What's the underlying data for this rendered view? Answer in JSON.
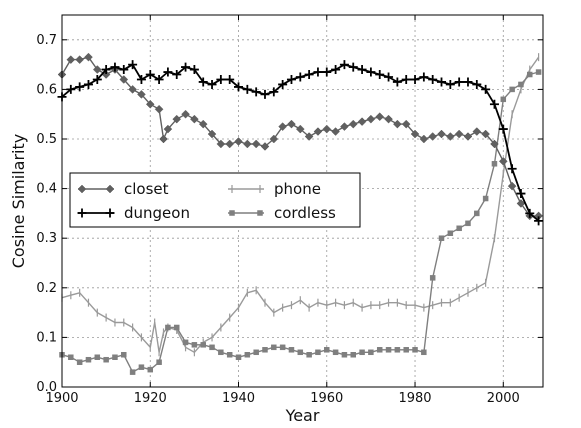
{
  "chart_data": {
    "type": "line",
    "title": "",
    "xlabel": "Year",
    "ylabel": "Cosine Similarity",
    "xlim": [
      1900,
      2009
    ],
    "ylim": [
      0.0,
      0.75
    ],
    "grid": true,
    "legend_position": "center-left",
    "x_ticks": [
      1900,
      1920,
      1940,
      1960,
      1980,
      2000
    ],
    "y_ticks": [
      0.0,
      0.1,
      0.2,
      0.3,
      0.4,
      0.5,
      0.6,
      0.7
    ],
    "x_tick_labels": [
      "1900",
      "1920",
      "1940",
      "1960",
      "1980",
      "2000"
    ],
    "y_tick_labels": [
      "0.0",
      "0.1",
      "0.2",
      "0.3",
      "0.4",
      "0.5",
      "0.6",
      "0.7"
    ],
    "series": [
      {
        "name": "closet",
        "color": "#606060",
        "marker": "diamond",
        "points": [
          [
            1900,
            0.63
          ],
          [
            1902,
            0.66
          ],
          [
            1904,
            0.66
          ],
          [
            1906,
            0.665
          ],
          [
            1908,
            0.64
          ],
          [
            1910,
            0.63
          ],
          [
            1912,
            0.64
          ],
          [
            1914,
            0.62
          ],
          [
            1916,
            0.6
          ],
          [
            1918,
            0.59
          ],
          [
            1920,
            0.57
          ],
          [
            1922,
            0.56
          ],
          [
            1923,
            0.5
          ],
          [
            1924,
            0.52
          ],
          [
            1926,
            0.54
          ],
          [
            1928,
            0.55
          ],
          [
            1930,
            0.54
          ],
          [
            1932,
            0.53
          ],
          [
            1934,
            0.51
          ],
          [
            1936,
            0.49
          ],
          [
            1938,
            0.49
          ],
          [
            1940,
            0.495
          ],
          [
            1942,
            0.49
          ],
          [
            1944,
            0.49
          ],
          [
            1946,
            0.485
          ],
          [
            1948,
            0.5
          ],
          [
            1950,
            0.525
          ],
          [
            1952,
            0.53
          ],
          [
            1954,
            0.52
          ],
          [
            1956,
            0.505
          ],
          [
            1958,
            0.515
          ],
          [
            1960,
            0.52
          ],
          [
            1962,
            0.515
          ],
          [
            1964,
            0.525
          ],
          [
            1966,
            0.53
          ],
          [
            1968,
            0.535
          ],
          [
            1970,
            0.54
          ],
          [
            1972,
            0.545
          ],
          [
            1974,
            0.54
          ],
          [
            1976,
            0.53
          ],
          [
            1978,
            0.53
          ],
          [
            1980,
            0.51
          ],
          [
            1982,
            0.5
          ],
          [
            1984,
            0.505
          ],
          [
            1986,
            0.51
          ],
          [
            1988,
            0.505
          ],
          [
            1990,
            0.51
          ],
          [
            1992,
            0.505
          ],
          [
            1994,
            0.515
          ],
          [
            1996,
            0.51
          ],
          [
            1998,
            0.49
          ],
          [
            2000,
            0.455
          ],
          [
            2002,
            0.405
          ],
          [
            2004,
            0.37
          ],
          [
            2006,
            0.345
          ],
          [
            2008,
            0.345
          ]
        ]
      },
      {
        "name": "dungeon",
        "color": "#000000",
        "marker": "plus",
        "points": [
          [
            1900,
            0.585
          ],
          [
            1902,
            0.6
          ],
          [
            1904,
            0.605
          ],
          [
            1906,
            0.61
          ],
          [
            1908,
            0.62
          ],
          [
            1910,
            0.64
          ],
          [
            1912,
            0.645
          ],
          [
            1914,
            0.64
          ],
          [
            1916,
            0.65
          ],
          [
            1918,
            0.62
          ],
          [
            1920,
            0.63
          ],
          [
            1922,
            0.62
          ],
          [
            1924,
            0.635
          ],
          [
            1926,
            0.63
          ],
          [
            1928,
            0.645
          ],
          [
            1930,
            0.64
          ],
          [
            1932,
            0.615
          ],
          [
            1934,
            0.61
          ],
          [
            1936,
            0.62
          ],
          [
            1938,
            0.62
          ],
          [
            1940,
            0.605
          ],
          [
            1942,
            0.6
          ],
          [
            1944,
            0.595
          ],
          [
            1946,
            0.59
          ],
          [
            1948,
            0.595
          ],
          [
            1950,
            0.61
          ],
          [
            1952,
            0.62
          ],
          [
            1954,
            0.625
          ],
          [
            1956,
            0.63
          ],
          [
            1958,
            0.635
          ],
          [
            1960,
            0.635
          ],
          [
            1962,
            0.64
          ],
          [
            1964,
            0.65
          ],
          [
            1966,
            0.645
          ],
          [
            1968,
            0.64
          ],
          [
            1970,
            0.635
          ],
          [
            1972,
            0.63
          ],
          [
            1974,
            0.625
          ],
          [
            1976,
            0.615
          ],
          [
            1978,
            0.62
          ],
          [
            1980,
            0.62
          ],
          [
            1982,
            0.625
          ],
          [
            1984,
            0.62
          ],
          [
            1986,
            0.615
          ],
          [
            1988,
            0.61
          ],
          [
            1990,
            0.615
          ],
          [
            1992,
            0.615
          ],
          [
            1994,
            0.61
          ],
          [
            1996,
            0.6
          ],
          [
            1998,
            0.57
          ],
          [
            2000,
            0.52
          ],
          [
            2002,
            0.44
          ],
          [
            2004,
            0.39
          ],
          [
            2006,
            0.35
          ],
          [
            2008,
            0.335
          ]
        ]
      },
      {
        "name": "phone",
        "color": "#9a9a9a",
        "marker": "vbar",
        "points": [
          [
            1900,
            0.18
          ],
          [
            1902,
            0.185
          ],
          [
            1904,
            0.19
          ],
          [
            1906,
            0.17
          ],
          [
            1908,
            0.15
          ],
          [
            1910,
            0.14
          ],
          [
            1912,
            0.13
          ],
          [
            1914,
            0.13
          ],
          [
            1916,
            0.12
          ],
          [
            1918,
            0.1
          ],
          [
            1920,
            0.08
          ],
          [
            1921,
            0.13
          ],
          [
            1922,
            0.07
          ],
          [
            1923,
            0.11
          ],
          [
            1924,
            0.12
          ],
          [
            1926,
            0.115
          ],
          [
            1928,
            0.08
          ],
          [
            1930,
            0.07
          ],
          [
            1932,
            0.09
          ],
          [
            1934,
            0.1
          ],
          [
            1936,
            0.12
          ],
          [
            1938,
            0.14
          ],
          [
            1940,
            0.16
          ],
          [
            1942,
            0.19
          ],
          [
            1944,
            0.195
          ],
          [
            1946,
            0.17
          ],
          [
            1948,
            0.15
          ],
          [
            1950,
            0.16
          ],
          [
            1952,
            0.165
          ],
          [
            1954,
            0.175
          ],
          [
            1956,
            0.16
          ],
          [
            1958,
            0.17
          ],
          [
            1960,
            0.165
          ],
          [
            1962,
            0.17
          ],
          [
            1964,
            0.165
          ],
          [
            1966,
            0.17
          ],
          [
            1968,
            0.16
          ],
          [
            1970,
            0.165
          ],
          [
            1972,
            0.165
          ],
          [
            1974,
            0.17
          ],
          [
            1976,
            0.17
          ],
          [
            1978,
            0.165
          ],
          [
            1980,
            0.165
          ],
          [
            1982,
            0.16
          ],
          [
            1984,
            0.165
          ],
          [
            1986,
            0.17
          ],
          [
            1988,
            0.17
          ],
          [
            1990,
            0.18
          ],
          [
            1992,
            0.19
          ],
          [
            1994,
            0.2
          ],
          [
            1996,
            0.21
          ],
          [
            1998,
            0.3
          ],
          [
            2000,
            0.43
          ],
          [
            2002,
            0.55
          ],
          [
            2004,
            0.6
          ],
          [
            2006,
            0.64
          ],
          [
            2008,
            0.665
          ]
        ]
      },
      {
        "name": "cordless",
        "color": "#7f7f7f",
        "marker": "square",
        "points": [
          [
            1900,
            0.065
          ],
          [
            1902,
            0.06
          ],
          [
            1904,
            0.05
          ],
          [
            1906,
            0.055
          ],
          [
            1908,
            0.06
          ],
          [
            1910,
            0.055
          ],
          [
            1912,
            0.06
          ],
          [
            1914,
            0.065
          ],
          [
            1916,
            0.03
          ],
          [
            1918,
            0.04
          ],
          [
            1920,
            0.035
          ],
          [
            1922,
            0.05
          ],
          [
            1924,
            0.12
          ],
          [
            1926,
            0.12
          ],
          [
            1928,
            0.09
          ],
          [
            1930,
            0.085
          ],
          [
            1932,
            0.085
          ],
          [
            1934,
            0.08
          ],
          [
            1936,
            0.07
          ],
          [
            1938,
            0.065
          ],
          [
            1940,
            0.06
          ],
          [
            1942,
            0.065
          ],
          [
            1944,
            0.07
          ],
          [
            1946,
            0.075
          ],
          [
            1948,
            0.08
          ],
          [
            1950,
            0.08
          ],
          [
            1952,
            0.075
          ],
          [
            1954,
            0.07
          ],
          [
            1956,
            0.065
          ],
          [
            1958,
            0.07
          ],
          [
            1960,
            0.075
          ],
          [
            1962,
            0.07
          ],
          [
            1964,
            0.065
          ],
          [
            1966,
            0.065
          ],
          [
            1968,
            0.07
          ],
          [
            1970,
            0.07
          ],
          [
            1972,
            0.075
          ],
          [
            1974,
            0.075
          ],
          [
            1976,
            0.075
          ],
          [
            1978,
            0.075
          ],
          [
            1980,
            0.075
          ],
          [
            1982,
            0.07
          ],
          [
            1984,
            0.22
          ],
          [
            1986,
            0.3
          ],
          [
            1988,
            0.31
          ],
          [
            1990,
            0.32
          ],
          [
            1992,
            0.33
          ],
          [
            1994,
            0.35
          ],
          [
            1996,
            0.38
          ],
          [
            1998,
            0.45
          ],
          [
            2000,
            0.58
          ],
          [
            2002,
            0.6
          ],
          [
            2004,
            0.61
          ],
          [
            2006,
            0.63
          ],
          [
            2008,
            0.635
          ]
        ]
      }
    ]
  }
}
